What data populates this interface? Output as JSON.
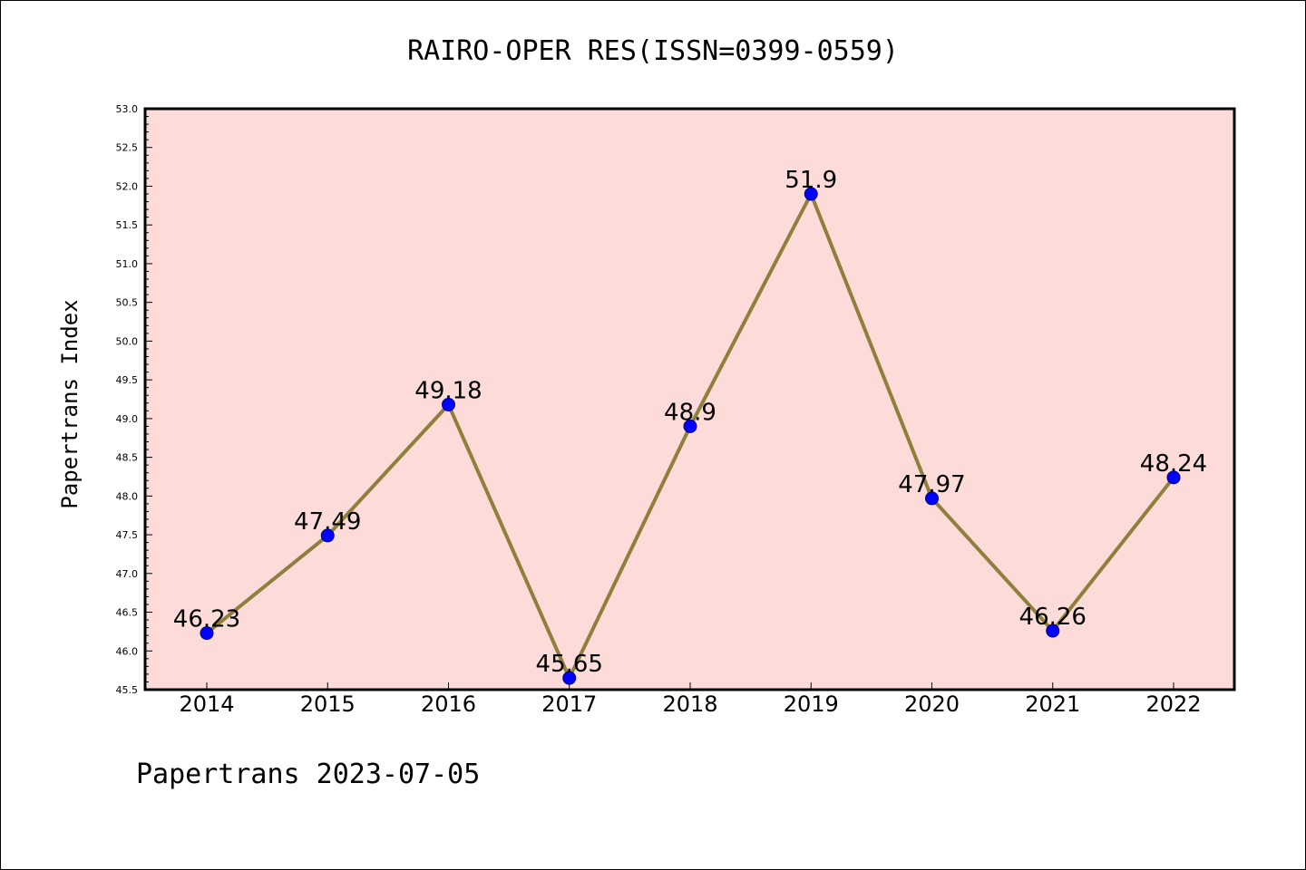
{
  "chart_data": {
    "type": "line",
    "title": "RAIRO-OPER RES(ISSN=0399-0559)",
    "ylabel": "Papertrans Index",
    "xlabel": "",
    "footer": "Papertrans 2023-07-05",
    "categories": [
      "2014",
      "2015",
      "2016",
      "2017",
      "2018",
      "2019",
      "2020",
      "2021",
      "2022"
    ],
    "values": [
      46.23,
      47.49,
      49.18,
      45.65,
      48.9,
      51.9,
      47.97,
      46.26,
      48.24
    ],
    "data_labels": [
      "46.23",
      "47.49",
      "49.18",
      "45.65",
      "48.9",
      "51.9",
      "47.97",
      "46.26",
      "48.24"
    ],
    "ylim": [
      45.5,
      53.0
    ],
    "yticks": [
      "45.5",
      "46.0",
      "46.5",
      "47.0",
      "47.5",
      "48.0",
      "48.5",
      "49.0",
      "49.5",
      "50.0",
      "50.5",
      "51.0",
      "51.5",
      "52.0",
      "52.5",
      "53.0"
    ],
    "grid": false,
    "colors": {
      "plot_background": "#fddbd8",
      "line": "#8f7f3c",
      "marker": "#0000ff",
      "marker_edge": "#00007a"
    }
  }
}
